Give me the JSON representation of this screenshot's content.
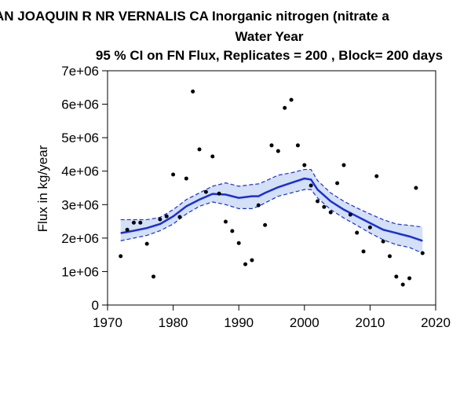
{
  "chart_data": {
    "type": "scatter_ci",
    "title": "AN JOAQUIN R NR VERNALIS CA   Inorganic nitrogen (nitrate a",
    "subtitle": "Water Year",
    "subtitle2": "95 % CI on FN Flux, Replicates = 200 , Block= 200 days",
    "ylabel": "Flux in kg/year",
    "xlim": [
      1970,
      2020
    ],
    "xticks": [
      1970,
      1980,
      1990,
      2000,
      2010,
      2020
    ],
    "ylim": [
      0,
      7000000
    ],
    "yticks": [
      0,
      {
        "value": 1000000,
        "label": "1e+06"
      },
      {
        "value": 2000000,
        "label": "2e+06"
      },
      {
        "value": 3000000,
        "label": "3e+06"
      },
      {
        "value": 4000000,
        "label": "4e+06"
      },
      {
        "value": 5000000,
        "label": "5e+06"
      },
      {
        "value": 6000000,
        "label": "6e+06"
      },
      {
        "value": 7000000,
        "label": "7e+06"
      }
    ],
    "point_color": "#000000",
    "line_color": "#1a2fd6",
    "band_color": "#d4e0f5",
    "x": [
      1972,
      1973,
      1974,
      1975,
      1976,
      1977,
      1978,
      1979,
      1980,
      1981,
      1982,
      1983,
      1984,
      1985,
      1986,
      1987,
      1988,
      1989,
      1990,
      1991,
      1992,
      1993,
      1994,
      1995,
      1996,
      1997,
      1998,
      1999,
      2000,
      2001,
      2002,
      2003,
      2004,
      2005,
      2006,
      2007,
      2008,
      2009,
      2010,
      2011,
      2012,
      2013,
      2014,
      2015,
      2016,
      2017,
      2018
    ],
    "values": [
      1460000,
      2250000,
      2460000,
      2460000,
      1830000,
      850000,
      2560000,
      2650000,
      3900000,
      2630000,
      3780000,
      6380000,
      4650000,
      3380000,
      4440000,
      3330000,
      2490000,
      2210000,
      1850000,
      1220000,
      1340000,
      2980000,
      2390000,
      4770000,
      4600000,
      5890000,
      6130000,
      4770000,
      4180000,
      3570000,
      3100000,
      2930000,
      2770000,
      3640000,
      4180000,
      2700000,
      2160000,
      1600000,
      2320000,
      3850000,
      1900000,
      1460000,
      850000,
      610000,
      800000,
      3500000,
      1550000
    ],
    "curve_x": [
      1972,
      1974,
      1976,
      1978,
      1980,
      1982,
      1984,
      1986,
      1988,
      1990,
      1992,
      1993,
      1994,
      1996,
      1998,
      2000,
      2001,
      2002,
      2004,
      2006,
      2008,
      2010,
      2012,
      2014,
      2016,
      2018
    ],
    "estimate": [
      2150000,
      2220000,
      2300000,
      2420000,
      2650000,
      2950000,
      3150000,
      3320000,
      3300000,
      3200000,
      3250000,
      3250000,
      3350000,
      3520000,
      3650000,
      3780000,
      3750000,
      3450000,
      3100000,
      2850000,
      2650000,
      2450000,
      2250000,
      2150000,
      2050000,
      1920000
    ],
    "ci_upper": [
      2550000,
      2550000,
      2550000,
      2620000,
      2850000,
      3150000,
      3350000,
      3550000,
      3650000,
      3550000,
      3600000,
      3620000,
      3700000,
      3880000,
      3950000,
      4050000,
      4050000,
      3720000,
      3350000,
      3100000,
      2900000,
      2720000,
      2550000,
      2420000,
      2380000,
      2330000
    ],
    "ci_lower": [
      1920000,
      2000000,
      2080000,
      2220000,
      2420000,
      2720000,
      2950000,
      3080000,
      3000000,
      2880000,
      2880000,
      2950000,
      3050000,
      3250000,
      3350000,
      3450000,
      3450000,
      3200000,
      2850000,
      2600000,
      2380000,
      2150000,
      1950000,
      1800000,
      1720000,
      1550000
    ]
  }
}
